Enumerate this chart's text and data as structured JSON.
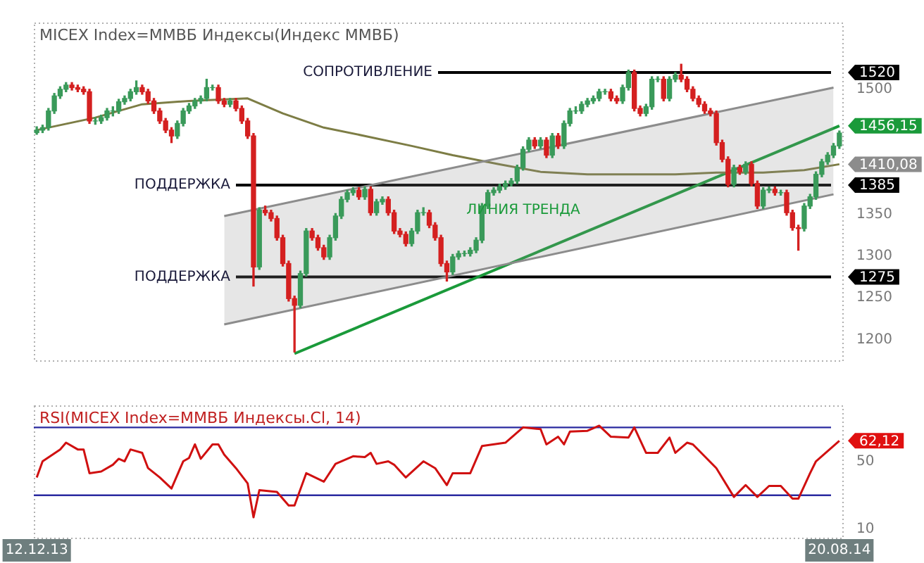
{
  "chart_data": [
    {
      "type": "candlestick",
      "title": "MICEX Index=ММВБ Индексы(Индекс ММВБ)",
      "categories": [
        "12.12.13",
        null,
        null,
        null,
        null,
        null,
        null,
        null,
        null,
        null,
        null,
        null,
        null,
        null,
        null,
        null,
        null,
        null,
        null,
        null,
        null,
        null,
        null,
        null,
        null,
        null,
        null,
        null,
        null,
        null,
        null,
        null,
        null,
        null,
        null,
        null,
        null,
        null,
        null,
        null,
        null,
        null,
        null,
        null,
        null,
        null,
        null,
        null,
        null,
        null,
        null,
        null,
        null,
        null,
        null,
        null,
        null,
        null,
        null,
        null,
        null,
        null,
        null,
        null,
        null,
        null,
        null,
        null,
        null,
        null,
        null,
        null,
        null,
        null,
        null,
        null,
        null,
        null,
        null,
        null,
        null,
        null,
        null,
        null,
        null,
        null,
        null,
        null,
        null,
        null,
        null,
        null,
        null,
        null,
        null,
        null,
        null,
        null,
        null,
        null,
        null,
        null,
        null,
        null,
        null,
        null,
        null,
        null,
        null,
        null,
        null,
        null,
        null,
        null,
        null,
        null,
        null,
        null,
        null,
        null,
        null,
        null,
        null,
        null,
        null,
        null,
        null,
        null,
        null,
        null,
        null,
        null,
        null,
        null,
        null,
        null,
        null,
        "20.08.14"
      ],
      "ohlc": [
        [
          1448,
          1455,
          1446,
          1451
        ],
        [
          1451,
          1457,
          1448,
          1454
        ],
        [
          1454,
          1477,
          1451,
          1474
        ],
        [
          1474,
          1495,
          1471,
          1492
        ],
        [
          1492,
          1503,
          1489,
          1500
        ],
        [
          1500,
          1508,
          1497,
          1505
        ],
        [
          1505,
          1508,
          1499,
          1502
        ],
        [
          1502,
          1505,
          1497,
          1500
        ],
        [
          1500,
          1503,
          1494,
          1497
        ],
        [
          1497,
          1500,
          1459,
          1462
        ],
        [
          1462,
          1466,
          1458,
          1462
        ],
        [
          1462,
          1469,
          1459,
          1466
        ],
        [
          1466,
          1477,
          1463,
          1474
        ],
        [
          1474,
          1479,
          1468,
          1474
        ],
        [
          1474,
          1488,
          1471,
          1485
        ],
        [
          1485,
          1492,
          1482,
          1489
        ],
        [
          1489,
          1500,
          1486,
          1497
        ],
        [
          1497,
          1510,
          1494,
          1502
        ],
        [
          1502,
          1505,
          1494,
          1497
        ],
        [
          1497,
          1500,
          1483,
          1486
        ],
        [
          1486,
          1489,
          1471,
          1474
        ],
        [
          1474,
          1477,
          1459,
          1462
        ],
        [
          1462,
          1465,
          1448,
          1451
        ],
        [
          1451,
          1454,
          1436,
          1444
        ],
        [
          1444,
          1462,
          1441,
          1459
        ],
        [
          1459,
          1477,
          1456,
          1474
        ],
        [
          1474,
          1483,
          1471,
          1480
        ],
        [
          1480,
          1489,
          1477,
          1486
        ],
        [
          1486,
          1492,
          1483,
          1489
        ],
        [
          1489,
          1512,
          1486,
          1502
        ],
        [
          1502,
          1505,
          1499,
          1502
        ],
        [
          1502,
          1505,
          1483,
          1486
        ],
        [
          1486,
          1489,
          1479,
          1482
        ],
        [
          1482,
          1489,
          1479,
          1486
        ],
        [
          1486,
          1489,
          1474,
          1477
        ],
        [
          1477,
          1480,
          1459,
          1462
        ],
        [
          1462,
          1465,
          1441,
          1444
        ],
        [
          1444,
          1447,
          1264,
          1287
        ],
        [
          1287,
          1358,
          1284,
          1355
        ],
        [
          1355,
          1360,
          1349,
          1352
        ],
        [
          1352,
          1355,
          1342,
          1345
        ],
        [
          1345,
          1348,
          1319,
          1322
        ],
        [
          1322,
          1325,
          1288,
          1291
        ],
        [
          1291,
          1294,
          1246,
          1249
        ],
        [
          1249,
          1252,
          1185,
          1241
        ],
        [
          1241,
          1282,
          1238,
          1279
        ],
        [
          1279,
          1333,
          1276,
          1330
        ],
        [
          1330,
          1333,
          1319,
          1322
        ],
        [
          1322,
          1325,
          1307,
          1310
        ],
        [
          1310,
          1313,
          1296,
          1299
        ],
        [
          1299,
          1325,
          1296,
          1322
        ],
        [
          1322,
          1351,
          1319,
          1348
        ],
        [
          1348,
          1371,
          1345,
          1368
        ],
        [
          1368,
          1379,
          1365,
          1376
        ],
        [
          1376,
          1382,
          1373,
          1379
        ],
        [
          1379,
          1382,
          1368,
          1371
        ],
        [
          1371,
          1383,
          1368,
          1380
        ],
        [
          1380,
          1383,
          1349,
          1352
        ],
        [
          1352,
          1368,
          1349,
          1365
        ],
        [
          1365,
          1371,
          1362,
          1368
        ],
        [
          1368,
          1371,
          1349,
          1352
        ],
        [
          1352,
          1355,
          1327,
          1330
        ],
        [
          1330,
          1333,
          1323,
          1326
        ],
        [
          1326,
          1329,
          1312,
          1315
        ],
        [
          1315,
          1333,
          1312,
          1330
        ],
        [
          1330,
          1355,
          1327,
          1352
        ],
        [
          1352,
          1358,
          1349,
          1352
        ],
        [
          1352,
          1355,
          1334,
          1337
        ],
        [
          1337,
          1340,
          1319,
          1322
        ],
        [
          1322,
          1325,
          1288,
          1291
        ],
        [
          1291,
          1294,
          1270,
          1281
        ],
        [
          1281,
          1302,
          1278,
          1299
        ],
        [
          1299,
          1306,
          1296,
          1303
        ],
        [
          1303,
          1306,
          1300,
          1303
        ],
        [
          1303,
          1310,
          1300,
          1307
        ],
        [
          1307,
          1322,
          1304,
          1319
        ],
        [
          1319,
          1363,
          1316,
          1360
        ],
        [
          1360,
          1379,
          1357,
          1376
        ],
        [
          1376,
          1382,
          1373,
          1379
        ],
        [
          1379,
          1386,
          1376,
          1383
        ],
        [
          1383,
          1390,
          1380,
          1387
        ],
        [
          1387,
          1393,
          1384,
          1390
        ],
        [
          1390,
          1409,
          1387,
          1406
        ],
        [
          1406,
          1431,
          1403,
          1428
        ],
        [
          1428,
          1442,
          1425,
          1439
        ],
        [
          1439,
          1442,
          1429,
          1432
        ],
        [
          1432,
          1442,
          1429,
          1439
        ],
        [
          1439,
          1442,
          1418,
          1421
        ],
        [
          1421,
          1447,
          1418,
          1444
        ],
        [
          1444,
          1447,
          1429,
          1432
        ],
        [
          1432,
          1462,
          1429,
          1459
        ],
        [
          1459,
          1477,
          1456,
          1474
        ],
        [
          1474,
          1479,
          1471,
          1474
        ],
        [
          1474,
          1485,
          1471,
          1482
        ],
        [
          1482,
          1489,
          1479,
          1486
        ],
        [
          1486,
          1492,
          1483,
          1489
        ],
        [
          1489,
          1500,
          1486,
          1497
        ],
        [
          1497,
          1500,
          1494,
          1497
        ],
        [
          1497,
          1500,
          1486,
          1489
        ],
        [
          1489,
          1492,
          1483,
          1486
        ],
        [
          1486,
          1505,
          1483,
          1502
        ],
        [
          1502,
          1523,
          1499,
          1520
        ],
        [
          1520,
          1523,
          1474,
          1477
        ],
        [
          1477,
          1480,
          1468,
          1471
        ],
        [
          1471,
          1482,
          1468,
          1479
        ],
        [
          1479,
          1515,
          1476,
          1512
        ],
        [
          1512,
          1515,
          1509,
          1512
        ],
        [
          1512,
          1515,
          1486,
          1489
        ],
        [
          1489,
          1515,
          1486,
          1512
        ],
        [
          1512,
          1520,
          1509,
          1517
        ],
        [
          1517,
          1530,
          1509,
          1512
        ],
        [
          1512,
          1515,
          1497,
          1500
        ],
        [
          1500,
          1503,
          1486,
          1489
        ],
        [
          1489,
          1492,
          1479,
          1482
        ],
        [
          1482,
          1485,
          1471,
          1474
        ],
        [
          1474,
          1477,
          1468,
          1471
        ],
        [
          1471,
          1474,
          1433,
          1436
        ],
        [
          1436,
          1439,
          1413,
          1416
        ],
        [
          1416,
          1419,
          1383,
          1386
        ],
        [
          1386,
          1409,
          1383,
          1406
        ],
        [
          1406,
          1409,
          1398,
          1401
        ],
        [
          1401,
          1413,
          1398,
          1410
        ],
        [
          1410,
          1413,
          1384,
          1387
        ],
        [
          1387,
          1390,
          1357,
          1360
        ],
        [
          1360,
          1382,
          1357,
          1379
        ],
        [
          1379,
          1383,
          1376,
          1380
        ],
        [
          1380,
          1383,
          1373,
          1376
        ],
        [
          1376,
          1379,
          1373,
          1376
        ],
        [
          1376,
          1379,
          1349,
          1352
        ],
        [
          1352,
          1355,
          1331,
          1334
        ],
        [
          1334,
          1337,
          1307,
          1333
        ],
        [
          1333,
          1363,
          1330,
          1360
        ],
        [
          1360,
          1374,
          1357,
          1371
        ],
        [
          1371,
          1401,
          1368,
          1398
        ],
        [
          1398,
          1416,
          1395,
          1413
        ],
        [
          1413,
          1424,
          1410,
          1421
        ],
        [
          1421,
          1435,
          1418,
          1432
        ],
        [
          1432,
          1450,
          1429,
          1447.5
        ]
      ],
      "series": [
        {
          "type": "line",
          "color": "#8c8c8c",
          "values": [
            null,
            null,
            null,
            null,
            null,
            null,
            null,
            null,
            null,
            null,
            null,
            null,
            null,
            null,
            null,
            null,
            null,
            null,
            null,
            null,
            null,
            null,
            null,
            null,
            null,
            null,
            null,
            null,
            null,
            null,
            null,
            null,
            1218,
            null,
            null,
            null,
            null,
            null,
            null,
            null,
            null,
            null,
            null,
            null,
            null,
            null,
            null,
            null,
            null,
            null,
            null,
            null,
            null,
            null,
            null,
            null,
            null,
            null,
            null,
            null,
            null,
            null,
            null,
            null,
            null,
            null,
            null,
            null,
            null,
            null,
            null,
            null,
            null,
            null,
            null,
            null,
            null,
            null,
            null,
            null,
            null,
            null,
            null,
            null,
            null,
            null,
            null,
            null,
            null,
            null,
            null,
            null,
            null,
            null,
            null,
            null,
            null,
            null,
            null,
            null,
            null,
            null,
            null,
            null,
            null,
            null,
            null,
            null,
            null,
            null,
            null,
            null,
            null,
            null,
            null,
            null,
            null,
            null,
            null,
            null,
            null,
            null,
            null,
            null,
            null,
            null,
            null,
            null,
            null,
            null,
            null,
            null,
            null,
            null,
            null,
            null,
            1374,
            null
          ]
        },
        {
          "type": "line",
          "color": "#8c8c8c",
          "values": [
            null,
            null,
            null,
            null,
            null,
            null,
            null,
            null,
            null,
            null,
            null,
            null,
            null,
            null,
            null,
            null,
            null,
            null,
            null,
            null,
            null,
            null,
            null,
            null,
            null,
            null,
            null,
            null,
            null,
            null,
            null,
            null,
            1348,
            null,
            null,
            null,
            null,
            null,
            null,
            null,
            null,
            null,
            null,
            null,
            null,
            null,
            null,
            null,
            null,
            null,
            null,
            null,
            null,
            null,
            null,
            null,
            null,
            null,
            null,
            null,
            null,
            null,
            null,
            null,
            null,
            null,
            null,
            null,
            null,
            null,
            null,
            null,
            null,
            null,
            null,
            null,
            null,
            null,
            null,
            null,
            null,
            null,
            null,
            null,
            null,
            null,
            null,
            null,
            null,
            null,
            null,
            null,
            null,
            null,
            null,
            null,
            null,
            null,
            null,
            null,
            null,
            null,
            null,
            null,
            null,
            null,
            null,
            null,
            null,
            null,
            null,
            null,
            null,
            null,
            null,
            null,
            null,
            null,
            null,
            null,
            null,
            null,
            null,
            null,
            null,
            null,
            null,
            null,
            null,
            null,
            null,
            null,
            null,
            null,
            null,
            null,
            1502,
            null
          ]
        },
        {
          "type": "line",
          "color": "#7d7d45",
          "values": [
            1451,
            null,
            null,
            null,
            null,
            null,
            null,
            null,
            null,
            null,
            1466,
            null,
            null,
            null,
            null,
            null,
            null,
            null,
            1482,
            null,
            null,
            null,
            null,
            null,
            null,
            null,
            1486,
            null,
            null,
            null,
            null,
            null,
            null,
            null,
            null,
            null,
            1489,
            null,
            null,
            null,
            null,
            null,
            1471,
            null,
            null,
            null,
            null,
            null,
            null,
            1454,
            null,
            null,
            null,
            null,
            null,
            null,
            1444,
            null,
            null,
            null,
            null,
            null,
            null,
            null,
            1432,
            null,
            null,
            null,
            null,
            null,
            null,
            1421,
            null,
            null,
            null,
            null,
            null,
            null,
            null,
            1410,
            null,
            null,
            null,
            null,
            null,
            null,
            1401,
            null,
            null,
            null,
            null,
            null,
            null,
            null,
            1398,
            null,
            null,
            null,
            null,
            null,
            null,
            1398,
            null,
            null,
            null,
            null,
            null,
            null,
            null,
            1398,
            null,
            null,
            null,
            null,
            null,
            null,
            1400,
            null,
            null,
            null,
            null,
            null,
            null,
            null,
            1400,
            null,
            null,
            null,
            null,
            null,
            null,
            1403,
            null,
            null,
            null,
            null,
            null,
            1410.08
          ],
          "value_labels": [
            null,
            null,
            null,
            null,
            null,
            null,
            null,
            null,
            null,
            null,
            null,
            null,
            null,
            null,
            null,
            null,
            null,
            null,
            null,
            null,
            null,
            null,
            null,
            null,
            null,
            null,
            null,
            null,
            null,
            null,
            null,
            null,
            null,
            null,
            null,
            null,
            null,
            null,
            null,
            null,
            null,
            null,
            null,
            null,
            null,
            null,
            null,
            null,
            null,
            null,
            null,
            null,
            null,
            null,
            null,
            null,
            null,
            null,
            null,
            null,
            null,
            null,
            null,
            null,
            null,
            null,
            null,
            null,
            null,
            null,
            null,
            null,
            null,
            null,
            null,
            null,
            null,
            null,
            null,
            null,
            null,
            null,
            null,
            null,
            null,
            null,
            null,
            null,
            null,
            null,
            null,
            null,
            null,
            null,
            null,
            null,
            null,
            null,
            null,
            null,
            null,
            null,
            null,
            null,
            null,
            null,
            null,
            null,
            null,
            null,
            null,
            null,
            null,
            null,
            null,
            null,
            null,
            null,
            null,
            null,
            null,
            null,
            null,
            null,
            null,
            null,
            null,
            null,
            null,
            null,
            null,
            null,
            null,
            null,
            null,
            null,
            null,
            "1410,08"
          ]
        },
        {
          "type": "line",
          "name": "ЛИНИЯ ТРЕНДА",
          "color": "#1a9a3a",
          "values": [
            null,
            null,
            null,
            null,
            null,
            null,
            null,
            null,
            null,
            null,
            null,
            null,
            null,
            null,
            null,
            null,
            null,
            null,
            null,
            null,
            null,
            null,
            null,
            null,
            null,
            null,
            null,
            null,
            null,
            null,
            null,
            null,
            null,
            null,
            null,
            null,
            null,
            null,
            null,
            null,
            null,
            null,
            null,
            null,
            1183,
            null,
            null,
            null,
            null,
            null,
            null,
            null,
            null,
            null,
            null,
            null,
            null,
            null,
            null,
            null,
            null,
            null,
            null,
            null,
            null,
            null,
            null,
            null,
            null,
            null,
            null,
            null,
            null,
            null,
            null,
            null,
            null,
            null,
            null,
            null,
            null,
            null,
            null,
            null,
            null,
            null,
            null,
            null,
            null,
            null,
            null,
            null,
            null,
            null,
            null,
            null,
            null,
            null,
            null,
            null,
            null,
            null,
            null,
            null,
            null,
            null,
            null,
            null,
            null,
            null,
            null,
            null,
            null,
            null,
            null,
            null,
            null,
            null,
            null,
            null,
            null,
            null,
            null,
            null,
            null,
            null,
            null,
            null,
            null,
            null,
            null,
            null,
            null,
            null,
            null,
            null,
            null,
            1456.15
          ],
          "value_labels": [
            null,
            null,
            null,
            null,
            null,
            null,
            null,
            null,
            null,
            null,
            null,
            null,
            null,
            null,
            null,
            null,
            null,
            null,
            null,
            null,
            null,
            null,
            null,
            null,
            null,
            null,
            null,
            null,
            null,
            null,
            null,
            null,
            null,
            null,
            null,
            null,
            null,
            null,
            null,
            null,
            null,
            null,
            null,
            null,
            null,
            null,
            null,
            null,
            null,
            null,
            null,
            null,
            null,
            null,
            null,
            null,
            null,
            null,
            null,
            null,
            null,
            null,
            null,
            null,
            null,
            null,
            null,
            null,
            null,
            null,
            null,
            null,
            null,
            null,
            null,
            null,
            null,
            null,
            null,
            null,
            null,
            null,
            null,
            null,
            null,
            null,
            null,
            null,
            null,
            null,
            null,
            null,
            null,
            null,
            null,
            null,
            null,
            null,
            null,
            null,
            null,
            null,
            null,
            null,
            null,
            null,
            null,
            null,
            null,
            null,
            null,
            null,
            null,
            null,
            null,
            null,
            null,
            null,
            null,
            null,
            null,
            null,
            null,
            null,
            null,
            null,
            null,
            null,
            null,
            null,
            null,
            null,
            null,
            null,
            null,
            null,
            null,
            "1456,15"
          ]
        }
      ],
      "ylim": [
        1175,
        1580
      ],
      "yticks": [
        1200,
        1250,
        1300,
        1350,
        1500
      ],
      "tick_labels": "y",
      "grid": false,
      "legend": false,
      "ref_lines": [
        {
          "axis": "y",
          "value": 1520,
          "label": "СОПРОТИВЛЕНИЕ",
          "color": "#000000"
        },
        {
          "axis": "y",
          "value": 1385,
          "label": "ПОДДЕРЖКА",
          "color": "#000000"
        },
        {
          "axis": "y",
          "value": 1275,
          "label": "ПОДДЕРЖКА",
          "color": "#000000"
        }
      ],
      "annotations": [
        "1520",
        "1385",
        "1275"
      ]
    },
    {
      "type": "line",
      "title": "RSI(MICEX Index=ММВБ Индексы.Cl, 14)",
      "categories": [
        "12.12.13",
        null,
        null,
        null,
        null,
        null,
        null,
        null,
        null,
        null,
        null,
        null,
        null,
        null,
        null,
        null,
        null,
        null,
        null,
        null,
        null,
        null,
        null,
        null,
        null,
        null,
        null,
        null,
        null,
        null,
        null,
        null,
        null,
        null,
        null,
        null,
        null,
        null,
        null,
        null,
        null,
        null,
        null,
        null,
        null,
        null,
        null,
        null,
        null,
        null,
        null,
        null,
        null,
        null,
        null,
        null,
        null,
        null,
        null,
        null,
        null,
        null,
        null,
        null,
        null,
        null,
        null,
        null,
        null,
        null,
        null,
        null,
        null,
        null,
        null,
        null,
        null,
        null,
        null,
        null,
        null,
        null,
        null,
        null,
        null,
        null,
        null,
        null,
        null,
        null,
        null,
        null,
        null,
        null,
        null,
        null,
        null,
        null,
        null,
        null,
        null,
        null,
        null,
        null,
        null,
        null,
        null,
        null,
        null,
        null,
        null,
        null,
        null,
        null,
        null,
        null,
        null,
        null,
        null,
        null,
        null,
        null,
        null,
        null,
        null,
        null,
        null,
        null,
        null,
        null,
        null,
        null,
        null,
        null,
        null,
        null,
        null,
        "20.08.14"
      ],
      "series": [
        {
          "color": "#d01010",
          "values": [
            40.5,
            50,
            null,
            null,
            57,
            61,
            null,
            57,
            57,
            43,
            null,
            44,
            null,
            48,
            51.5,
            50,
            57,
            null,
            55,
            46,
            null,
            40.5,
            null,
            34,
            null,
            50,
            52,
            60,
            51.5,
            null,
            60,
            60,
            54,
            null,
            46,
            null,
            37,
            17,
            33,
            null,
            null,
            32,
            null,
            24,
            24,
            null,
            43,
            null,
            null,
            38,
            null,
            48.5,
            null,
            null,
            53,
            null,
            52.5,
            55,
            48.5,
            null,
            50,
            48,
            null,
            40.5,
            null,
            null,
            50,
            null,
            46,
            null,
            36,
            43,
            null,
            null,
            43,
            null,
            59,
            null,
            null,
            null,
            61,
            null,
            null,
            70,
            null,
            null,
            69,
            60,
            null,
            64.5,
            60,
            67.5,
            null,
            null,
            68,
            null,
            71,
            null,
            64.5,
            null,
            null,
            64,
            70,
            null,
            55,
            null,
            55,
            null,
            64,
            55,
            null,
            61,
            60,
            null,
            null,
            null,
            46,
            null,
            null,
            29,
            null,
            36,
            null,
            29,
            null,
            35.5,
            null,
            35.5,
            null,
            28,
            28,
            null,
            43,
            50,
            null,
            null,
            null,
            62.12
          ],
          "value_labels": [
            null,
            null,
            null,
            null,
            null,
            null,
            null,
            null,
            null,
            null,
            null,
            null,
            null,
            null,
            null,
            null,
            null,
            null,
            null,
            null,
            null,
            null,
            null,
            null,
            null,
            null,
            null,
            null,
            null,
            null,
            null,
            null,
            null,
            null,
            null,
            null,
            null,
            null,
            null,
            null,
            null,
            null,
            null,
            null,
            null,
            null,
            null,
            null,
            null,
            null,
            null,
            null,
            null,
            null,
            null,
            null,
            null,
            null,
            null,
            null,
            null,
            null,
            null,
            null,
            null,
            null,
            null,
            null,
            null,
            null,
            null,
            null,
            null,
            null,
            null,
            null,
            null,
            null,
            null,
            null,
            null,
            null,
            null,
            null,
            null,
            null,
            null,
            null,
            null,
            null,
            null,
            null,
            null,
            null,
            null,
            null,
            null,
            null,
            null,
            null,
            null,
            null,
            null,
            null,
            null,
            null,
            null,
            null,
            null,
            null,
            null,
            null,
            null,
            null,
            null,
            null,
            null,
            null,
            null,
            null,
            null,
            null,
            null,
            null,
            null,
            null,
            null,
            null,
            null,
            null,
            null,
            null,
            null,
            null,
            null,
            null,
            null,
            "62,12"
          ]
        }
      ],
      "ylim": [
        5,
        83
      ],
      "yticks": [
        10,
        50
      ],
      "grid": false,
      "legend": false,
      "ref_lines": [
        {
          "axis": "y",
          "value": 70,
          "color": "#2a2aa0"
        },
        {
          "axis": "y",
          "value": 30,
          "color": "#2a2aa0"
        }
      ]
    }
  ]
}
